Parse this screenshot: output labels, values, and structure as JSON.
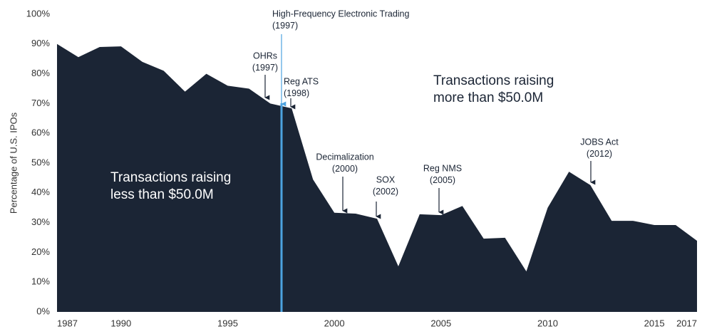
{
  "chart_data": {
    "type": "area",
    "y_label": "Percentage of U.S. IPOs",
    "x": [
      1987,
      1988,
      1989,
      1990,
      1991,
      1992,
      1993,
      1994,
      1995,
      1996,
      1997,
      1998,
      1999,
      2000,
      2001,
      2002,
      2003,
      2004,
      2005,
      2006,
      2007,
      2008,
      2009,
      2010,
      2011,
      2012,
      2013,
      2014,
      2015,
      2016,
      2017
    ],
    "values": [
      90,
      85.6,
      89,
      89.2,
      84,
      81,
      74,
      80,
      76,
      75,
      70,
      68.4,
      44.5,
      33.3,
      33,
      31.3,
      15.3,
      32.8,
      32.5,
      35.6,
      24.6,
      24.9,
      13.6,
      35,
      47.1,
      42.6,
      30.6,
      30.6,
      29.2,
      29.2,
      23.9
    ],
    "color": "#1b2535",
    "marker_color": "#4da3e0",
    "xlim": [
      1987,
      2017
    ],
    "xticks": [
      1987,
      1990,
      1995,
      2000,
      2005,
      2010,
      2015,
      2017
    ],
    "ylim": [
      0,
      100
    ],
    "yticks": [
      {
        "value": 0,
        "label": "0%"
      },
      {
        "value": 10,
        "label": "10%"
      },
      {
        "value": 20,
        "label": "20%"
      },
      {
        "value": 30,
        "label": "30%"
      },
      {
        "value": 40,
        "label": "40%"
      },
      {
        "value": 50,
        "label": "50%"
      },
      {
        "value": 60,
        "label": "60%"
      },
      {
        "value": 70,
        "label": "70%"
      },
      {
        "value": 80,
        "label": "80%"
      },
      {
        "value": 90,
        "label": "90%"
      },
      {
        "value": 100,
        "label": "100%"
      }
    ],
    "grid": false,
    "region_labels": [
      {
        "lines": [
          "Transactions raising",
          "less than $50.0M"
        ]
      },
      {
        "lines": [
          "Transactions raising",
          "more than $50.0M"
        ]
      }
    ],
    "annotations": [
      {
        "lines": [
          "High-Frequency Electronic Trading",
          "(1997)"
        ]
      },
      {
        "lines": [
          "OHRs",
          "(1997)"
        ]
      },
      {
        "lines": [
          "Reg ATS",
          "(1998)"
        ]
      },
      {
        "lines": [
          "Decimalization",
          "(2000)"
        ]
      },
      {
        "lines": [
          "SOX",
          "(2002)"
        ]
      },
      {
        "lines": [
          "Reg NMS",
          "(2005)"
        ]
      },
      {
        "lines": [
          "JOBS Act",
          "(2012)"
        ]
      }
    ]
  }
}
